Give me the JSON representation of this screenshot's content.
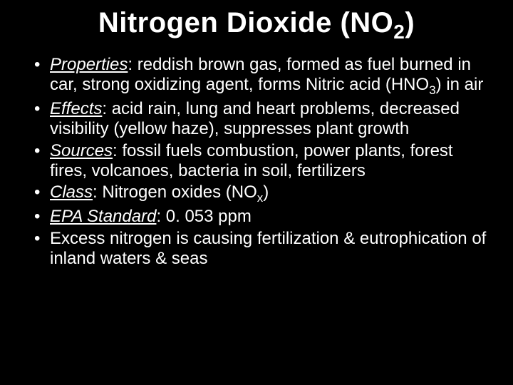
{
  "background_color": "#000000",
  "text_color": "#ffffff",
  "title_fontsize": 40,
  "body_fontsize": 24,
  "title": {
    "pre": "Nitrogen Dioxide (NO",
    "sub": "2",
    "post": ")"
  },
  "bullets": [
    {
      "label": "Properties",
      "text": ": reddish brown gas, formed as fuel burned in car, strong oxidizing agent, forms Nitric acid (HNO",
      "sub": "3",
      "tail": ") in air"
    },
    {
      "label": "Effects",
      "text": ": acid rain, lung and heart problems, decreased visibility (yellow haze), suppresses plant growth"
    },
    {
      "label": "Sources",
      "text": ": fossil fuels combustion, power plants, forest fires, volcanoes, bacteria in soil, fertilizers"
    },
    {
      "label": "Class",
      "text": ": Nitrogen oxides (NO",
      "sub": "x",
      "tail": ")"
    },
    {
      "label": "EPA Standard",
      "text": ": 0. 053 ppm"
    },
    {
      "label": "",
      "text": "Excess nitrogen is causing fertilization & eutrophication of inland waters & seas"
    }
  ]
}
